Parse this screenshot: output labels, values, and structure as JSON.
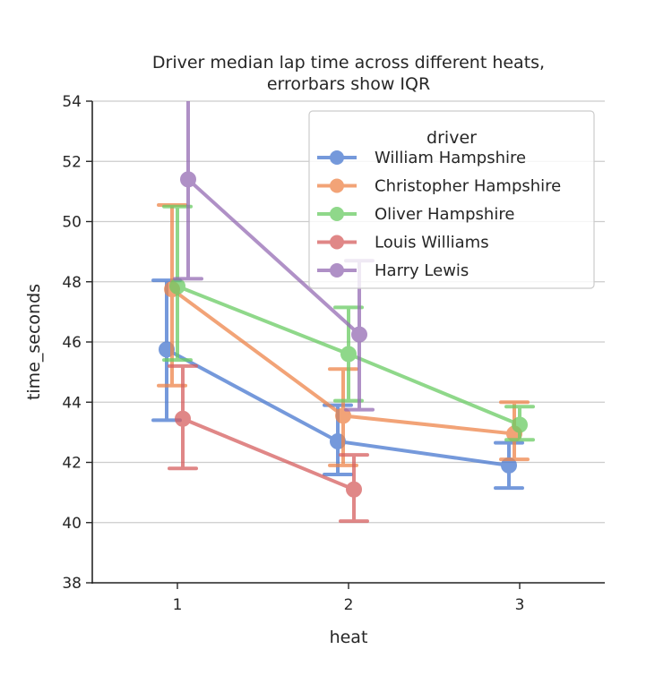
{
  "chart_data": {
    "type": "line",
    "title": "Driver median lap time across different heats,\nerrorbars show IQR",
    "title_lines": [
      "Driver median lap time across different heats,",
      "errorbars show IQR"
    ],
    "xlabel": "heat",
    "ylabel": "time_seconds",
    "categories": [
      "1",
      "2",
      "3"
    ],
    "ylim": [
      38,
      54
    ],
    "yticks": [
      "38",
      "40",
      "42",
      "44",
      "46",
      "48",
      "50",
      "52",
      "54"
    ],
    "grid": "horizontal",
    "legend": {
      "title": "driver",
      "placement": "top-right"
    },
    "series": [
      {
        "name": "William Hampshire",
        "color": "#4878d0",
        "values": [
          45.75,
          42.7,
          41.9
        ],
        "err_low": [
          43.4,
          41.6,
          41.15
        ],
        "err_high": [
          48.05,
          43.9,
          42.65
        ]
      },
      {
        "name": "Christopher Hampshire",
        "color": "#ee854a",
        "values": [
          47.75,
          43.55,
          42.95
        ],
        "err_low": [
          44.55,
          41.9,
          42.1
        ],
        "err_high": [
          50.55,
          45.1,
          44.0
        ]
      },
      {
        "name": "Oliver Hampshire",
        "color": "#6acc64",
        "values": [
          47.85,
          45.6,
          43.25
        ],
        "err_low": [
          45.4,
          44.05,
          42.75
        ],
        "err_high": [
          50.5,
          47.15,
          43.85
        ]
      },
      {
        "name": "Louis Williams",
        "color": "#d65f5f",
        "values": [
          43.45,
          41.1,
          null
        ],
        "err_low": [
          41.8,
          40.05,
          null
        ],
        "err_high": [
          45.2,
          42.25,
          null
        ]
      },
      {
        "name": "Harry Lewis",
        "color": "#956cb4",
        "values": [
          51.4,
          46.25,
          null
        ],
        "err_low": [
          48.1,
          43.75,
          null
        ],
        "err_high": [
          55.0,
          48.7,
          null
        ]
      }
    ]
  }
}
